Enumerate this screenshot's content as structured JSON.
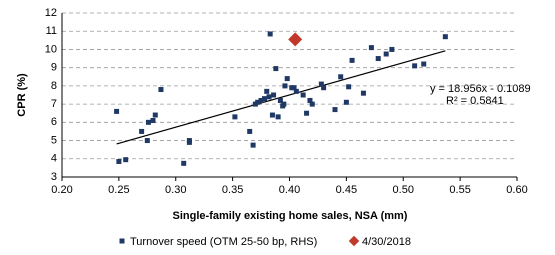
{
  "chart_data": {
    "type": "scatter",
    "x_label": "Single-family existing home sales, NSA (mm)",
    "y_label": "CPR (%)",
    "annotations": [
      "y = 18.956x - 0.1089",
      "R² = 0.5841"
    ],
    "xlim": [
      0.2,
      0.6
    ],
    "xticks": [
      {
        "value": 0.2,
        "label": "0.20"
      },
      {
        "value": 0.25,
        "label": "0.25"
      },
      {
        "value": 0.3,
        "label": "0.30"
      },
      {
        "value": 0.35,
        "label": "0.35"
      },
      {
        "value": 0.4,
        "label": "0.40"
      },
      {
        "value": 0.45,
        "label": "0.45"
      },
      {
        "value": 0.5,
        "label": "0.50"
      },
      {
        "value": 0.55,
        "label": "0.55"
      },
      {
        "value": 0.6,
        "label": "0.60"
      }
    ],
    "ylim": [
      3,
      12
    ],
    "yticks": [
      3,
      4,
      5,
      6,
      7,
      8,
      9,
      10,
      11,
      12
    ],
    "grid": true,
    "series": [
      {
        "name": "Turnover speed (OTM 25-50 bp, RHS)",
        "color": "#1f3864",
        "marker": "square",
        "x": [
          0.248,
          0.25,
          0.256,
          0.27,
          0.275,
          0.276,
          0.28,
          0.282,
          0.287,
          0.307,
          0.312,
          0.312,
          0.352,
          0.365,
          0.368,
          0.37,
          0.372,
          0.375,
          0.378,
          0.38,
          0.382,
          0.383,
          0.385,
          0.386,
          0.388,
          0.39,
          0.392,
          0.394,
          0.395,
          0.396,
          0.398,
          0.402,
          0.404,
          0.406,
          0.412,
          0.415,
          0.418,
          0.42,
          0.428,
          0.43,
          0.44,
          0.445,
          0.45,
          0.452,
          0.455,
          0.465,
          0.472,
          0.478,
          0.485,
          0.49,
          0.51,
          0.518,
          0.537
        ],
        "values": [
          6.6,
          3.85,
          3.95,
          5.5,
          5.0,
          6.0,
          6.1,
          6.4,
          7.8,
          3.75,
          5.0,
          4.9,
          6.3,
          5.5,
          4.75,
          7.0,
          7.1,
          7.2,
          7.3,
          7.7,
          7.4,
          10.85,
          6.4,
          7.5,
          8.95,
          6.3,
          7.2,
          6.9,
          7.0,
          8.0,
          8.4,
          7.9,
          7.9,
          7.7,
          7.5,
          6.5,
          7.2,
          7.0,
          8.1,
          7.9,
          6.7,
          8.5,
          7.1,
          7.95,
          9.4,
          7.6,
          10.1,
          9.5,
          9.75,
          10.0,
          9.1,
          9.2,
          10.7
        ]
      },
      {
        "name": "4/30/2018",
        "color": "#c0392b",
        "marker": "diamond",
        "x": [
          0.405
        ],
        "values": [
          10.55
        ]
      }
    ]
  }
}
